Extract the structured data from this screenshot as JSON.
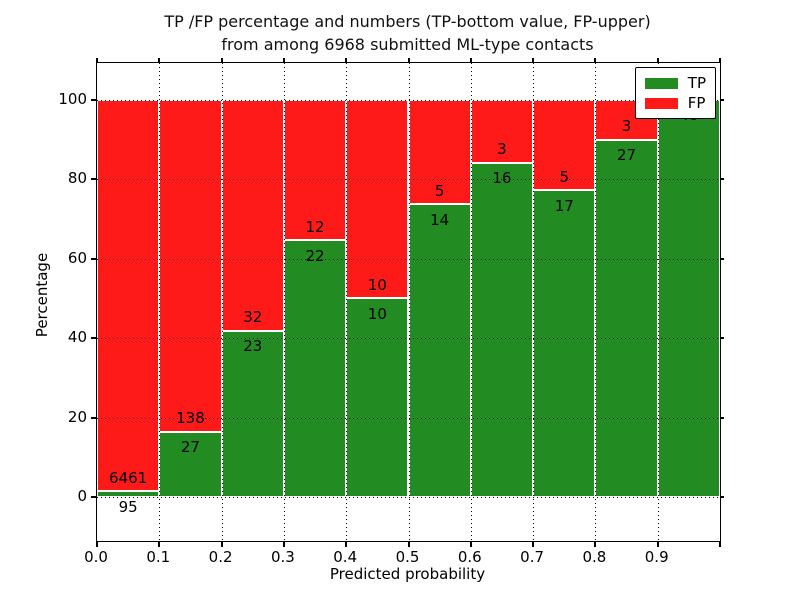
{
  "chart_data": {
    "type": "bar",
    "stacked": true,
    "normalized_to_percent": true,
    "title_line1": "TP /FP percentage and numbers (TP-bottom value, FP-upper)",
    "title_line2": "from among 6968 submitted ML-type contacts",
    "title": "TP /FP percentage and numbers (TP-bottom value, FP-upper) from among 6968 submitted ML-type contacts",
    "xlabel": "Predicted probability",
    "ylabel": "Percentage",
    "total_contacts": 6968,
    "categories": [
      "0.0-0.1",
      "0.1-0.2",
      "0.2-0.3",
      "0.3-0.4",
      "0.4-0.5",
      "0.5-0.6",
      "0.6-0.7",
      "0.7-0.8",
      "0.8-0.9",
      "0.9-1.0"
    ],
    "bin_starts": [
      0.0,
      0.1,
      0.2,
      0.3,
      0.4,
      0.5,
      0.6,
      0.7,
      0.8,
      0.9
    ],
    "bin_width": 0.1,
    "series": [
      {
        "name": "TP",
        "color": "#228b22",
        "counts": [
          95,
          27,
          23,
          22,
          10,
          14,
          16,
          17,
          27,
          48
        ],
        "percentages": [
          1.45,
          16.36,
          41.82,
          64.71,
          50.0,
          73.68,
          84.21,
          77.27,
          90.0,
          100.0
        ]
      },
      {
        "name": "FP",
        "color": "#ff1a1a",
        "counts": [
          6461,
          138,
          32,
          12,
          10,
          5,
          3,
          5,
          3,
          0
        ],
        "percentages": [
          98.55,
          83.64,
          58.18,
          35.29,
          50.0,
          26.32,
          15.79,
          22.73,
          10.0,
          0.0
        ]
      }
    ],
    "xticks": [
      "0.0",
      "0.1",
      "0.2",
      "0.3",
      "0.4",
      "0.5",
      "0.6",
      "0.7",
      "0.8",
      "0.9"
    ],
    "yticks": [
      0,
      20,
      40,
      60,
      80,
      100
    ],
    "xlim": [
      0.0,
      1.0
    ],
    "ylim": [
      -11.1,
      109.3
    ],
    "grid": true,
    "grid_style": "dotted",
    "legend_position": "upper right",
    "legend_entries": [
      "TP",
      "FP"
    ]
  }
}
